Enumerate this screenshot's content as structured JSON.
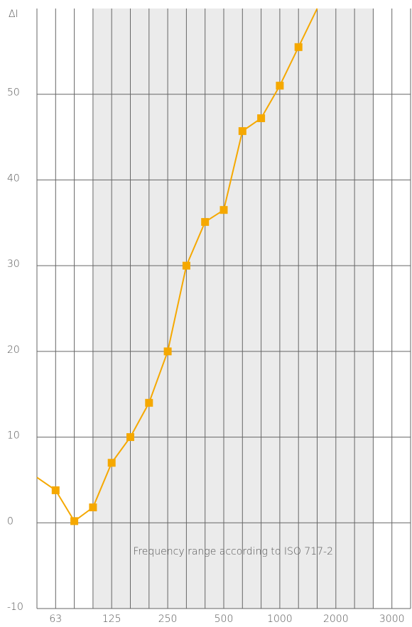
{
  "chart_data": {
    "type": "line",
    "y_label": "ΔI",
    "annotation": "Frequency range according to ISO 717-2",
    "categories": [
      null,
      "63",
      null,
      null,
      "125",
      null,
      null,
      "250",
      null,
      null,
      "500",
      null,
      null,
      "1000",
      null,
      null,
      "2000",
      null,
      null,
      "3000",
      null
    ],
    "series": [
      {
        "color": "#f5a800",
        "values": [
          5.3,
          3.8,
          0.2,
          1.8,
          7,
          10,
          14,
          20,
          30,
          35.1,
          36.5,
          45.7,
          47.2,
          51,
          55.5,
          60,
          null,
          null,
          null,
          null,
          null
        ]
      }
    ],
    "shaded_range": [
      3,
      18
    ],
    "ylim": [
      -10,
      60
    ],
    "yticks": [
      -10,
      0,
      10,
      20,
      30,
      40,
      50
    ],
    "grid": true
  }
}
